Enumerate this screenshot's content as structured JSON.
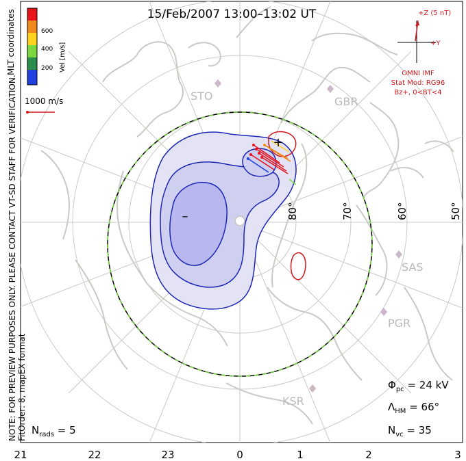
{
  "title": "15/Feb/2007 13:00–13:02 UT",
  "coord_system": "MLT coordinates",
  "colorbar": {
    "label": "Vel [m/s]",
    "ticks": [
      "600",
      "400",
      "200"
    ],
    "colors": [
      "#e8141a",
      "#f08a1e",
      "#ffd21e",
      "#7dd640",
      "#2a8c4a",
      "#1f3fe0"
    ]
  },
  "vector_scale": "1000 m/s",
  "disclaimer": "NOTE: FOR PREVIEW PURPOSES ONLY. PLEASE CONTACT VT-SD STAFF FOR VERIFICATION.",
  "fit_order": "FitOrder: 8, mapEX format",
  "imf": {
    "z_label": "+Z (5 nT)",
    "y_label": "+Y",
    "source": "OMNI IMF",
    "model": "Stat Mod: RG96",
    "condition": "Bz+, 0<BT<4",
    "color": "#d0181c"
  },
  "radars": [
    "STO",
    "GBR",
    "SAS",
    "PGR",
    "KSR"
  ],
  "lat_labels": [
    "80°",
    "70°",
    "60°",
    "50°"
  ],
  "mlt_labels": [
    "21",
    "22",
    "23",
    "0",
    "1",
    "2",
    "3"
  ],
  "stats": {
    "phi_pc": "24 kV",
    "lambda_hm": "66°",
    "n_vc": "35",
    "n_rads": "5"
  },
  "potential_markers": {
    "min": "–",
    "max": "+"
  }
}
